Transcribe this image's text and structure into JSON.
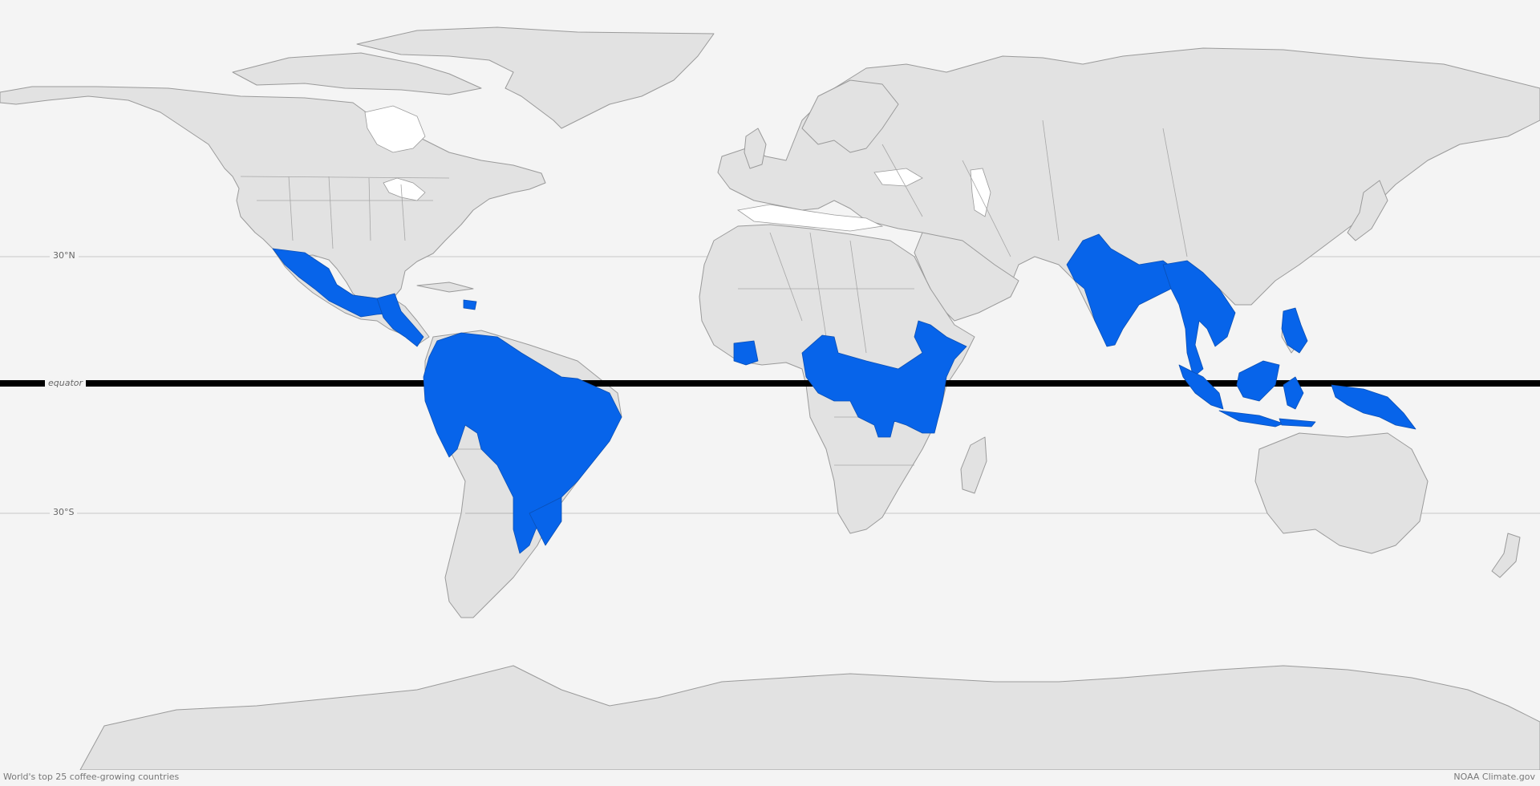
{
  "map": {
    "caption": "World's top 25 coffee-growing countries",
    "credit": "NOAA Climate.gov",
    "latitude_labels": {
      "north": "30°N",
      "equator": "equator",
      "south": "30°S"
    },
    "colors": {
      "ocean": "#f4f4f4",
      "land": "#e2e2e2",
      "highlight": "#0764ea",
      "equator": "#000000"
    }
  }
}
